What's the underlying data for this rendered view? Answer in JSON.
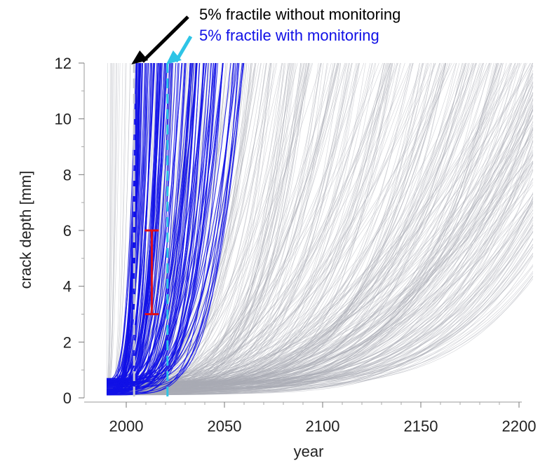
{
  "chart_data": {
    "type": "line",
    "xlabel": "year",
    "ylabel": "crack depth [mm]",
    "xlim": [
      1985,
      2200
    ],
    "ylim": [
      0,
      12
    ],
    "x_ticks": [
      2000,
      2050,
      2100,
      2150,
      2200
    ],
    "y_ticks": [
      0,
      2,
      4,
      6,
      8,
      10,
      12
    ],
    "grid": false,
    "colors": {
      "without_monitoring": "#a9abb4",
      "with_monitoring": "#1010e6",
      "fractile_without": "#c4c6d2",
      "fractile_with": "#2ec4e6",
      "error_bar": "#e0101a",
      "arrow_without": "#000000",
      "arrow_with": "#2ec4e6"
    },
    "fractiles": {
      "without_monitoring_year": 2004,
      "with_monitoring_year": 2021
    },
    "error_bar": {
      "x": 2013,
      "y_low": 3.0,
      "y_high": 6.0
    },
    "annotations": [
      {
        "text": "5% fractile without monitoring",
        "color": "#000000"
      },
      {
        "text": "5% fractile with monitoring",
        "color": "#1010e6"
      }
    ],
    "series": [
      {
        "group": "without_monitoring",
        "failure_year_range": [
          1990,
          2200
        ],
        "count": 450
      },
      {
        "group": "with_monitoring",
        "failure_year_range": [
          2005,
          2060
        ],
        "count": 120
      }
    ]
  }
}
